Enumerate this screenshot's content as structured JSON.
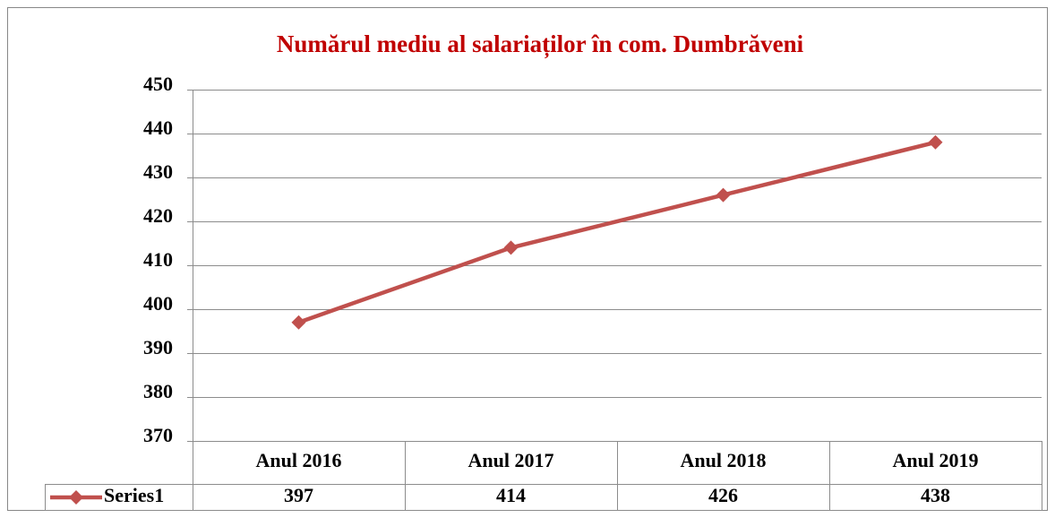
{
  "chart_data": {
    "type": "line",
    "title": "Numărul mediu al salariaților în com. Dumbrăveni",
    "categories": [
      "Anul 2016",
      "Anul 2017",
      "Anul 2018",
      "Anul 2019"
    ],
    "series": [
      {
        "name": "Series1",
        "color": "#c0504d",
        "values": [
          397,
          414,
          426,
          438
        ]
      }
    ],
    "ylim": [
      370,
      450
    ],
    "yticks": [
      370,
      380,
      390,
      400,
      410,
      420,
      430,
      440,
      450
    ],
    "grid": true,
    "data_table": true
  }
}
